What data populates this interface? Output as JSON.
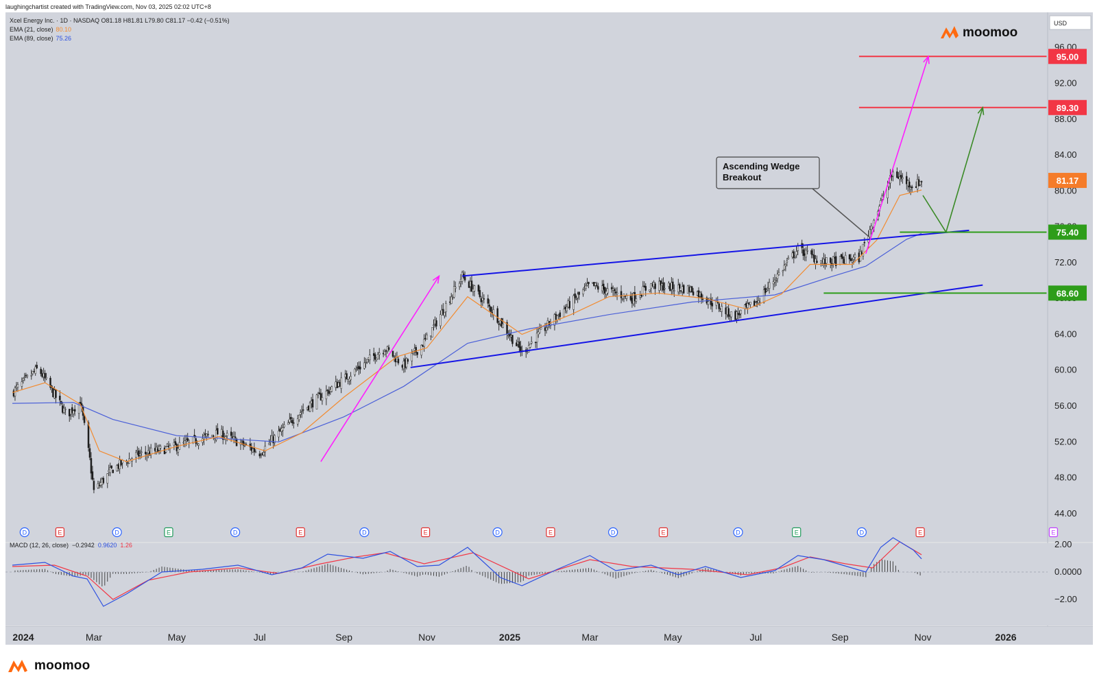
{
  "attribution": "laughingchartist created with TradingView.com, Nov 03, 2025 02:02 UTC+8",
  "legend": {
    "symbol_line": "Xcel Energy Inc. · 1D · NASDAQ  O81.18  H81.81  L79.80  C81.17  −0.42 (−0.51%)",
    "ema21_label": "EMA (21, close)",
    "ema21_value": "80.10",
    "ema89_label": "EMA (89, close)",
    "ema89_value": "75.26",
    "macd_label": "MACD (12, 26, close)",
    "macd_hist": "−0.2942",
    "macd_line": "0.9620",
    "macd_signal": "1.26"
  },
  "currency": "USD",
  "brand": "moomoo",
  "colors": {
    "background": "#d1d4dc",
    "ema21": "#f28b30",
    "ema89": "#4a5fd8",
    "wedge": "#1414e6",
    "projection": "#ff1eff",
    "target": "#f23645",
    "support": "#2e9d1a",
    "path": "#3a8a26",
    "macd": "#2d50e0",
    "signal": "#f23645"
  },
  "chart_data": {
    "type": "candlestick",
    "price_axis": {
      "ticks": [
        "96.00",
        "92.00",
        "88.00",
        "84.00",
        "80.00",
        "76.00",
        "72.00",
        "68.00",
        "64.00",
        "60.00",
        "56.00",
        "52.00",
        "48.00",
        "44.00"
      ],
      "range": [
        43,
        99
      ]
    },
    "time_axis": {
      "labels": [
        "2024",
        "Mar",
        "May",
        "Jul",
        "Sep",
        "Nov",
        "2025",
        "Mar",
        "May",
        "Jul",
        "Sep",
        "Nov",
        "2026"
      ]
    },
    "key_points": [
      {
        "date": "2024-01-01",
        "close": 57.5
      },
      {
        "date": "2024-01-20",
        "close": 60.2
      },
      {
        "date": "2024-02-10",
        "close": 55.0
      },
      {
        "date": "2024-02-20",
        "close": 56.5
      },
      {
        "date": "2024-02-27",
        "close": 50.0
      },
      {
        "date": "2024-03-01",
        "close": 46.5
      },
      {
        "date": "2024-03-15",
        "close": 49.0
      },
      {
        "date": "2024-04-01",
        "close": 50.5
      },
      {
        "date": "2024-05-01",
        "close": 51.5
      },
      {
        "date": "2024-06-01",
        "close": 53.0
      },
      {
        "date": "2024-07-01",
        "close": 50.8
      },
      {
        "date": "2024-08-01",
        "close": 55.5
      },
      {
        "date": "2024-09-01",
        "close": 59.0
      },
      {
        "date": "2024-10-01",
        "close": 62.5
      },
      {
        "date": "2024-10-15",
        "close": 60.5
      },
      {
        "date": "2024-11-01",
        "close": 63.5
      },
      {
        "date": "2024-11-27",
        "close": 70.5
      },
      {
        "date": "2024-12-20",
        "close": 66.5
      },
      {
        "date": "2025-01-10",
        "close": 62.0
      },
      {
        "date": "2025-02-01",
        "close": 65.5
      },
      {
        "date": "2025-03-01",
        "close": 69.5
      },
      {
        "date": "2025-04-01",
        "close": 68.0
      },
      {
        "date": "2025-04-15",
        "close": 69.5
      },
      {
        "date": "2025-05-15",
        "close": 69.0
      },
      {
        "date": "2025-06-15",
        "close": 66.0
      },
      {
        "date": "2025-07-01",
        "close": 67.5
      },
      {
        "date": "2025-08-01",
        "close": 73.5
      },
      {
        "date": "2025-08-20",
        "close": 72.0
      },
      {
        "date": "2025-09-15",
        "close": 72.5
      },
      {
        "date": "2025-09-25",
        "close": 76.5
      },
      {
        "date": "2025-10-10",
        "close": 82.0
      },
      {
        "date": "2025-10-25",
        "close": 80.5
      },
      {
        "date": "2025-10-31",
        "close": 81.17
      }
    ],
    "ema21_points": [
      {
        "date": "2024-01-01",
        "value": 57.5
      },
      {
        "date": "2024-01-25",
        "value": 58.6
      },
      {
        "date": "2024-02-20",
        "value": 56.2
      },
      {
        "date": "2024-03-05",
        "value": 51.0
      },
      {
        "date": "2024-03-25",
        "value": 49.8
      },
      {
        "date": "2024-05-01",
        "value": 51.5
      },
      {
        "date": "2024-06-01",
        "value": 52.6
      },
      {
        "date": "2024-07-05",
        "value": 51.0
      },
      {
        "date": "2024-08-01",
        "value": 53.0
      },
      {
        "date": "2024-09-01",
        "value": 57.0
      },
      {
        "date": "2024-10-10",
        "value": 61.5
      },
      {
        "date": "2024-11-01",
        "value": 62.5
      },
      {
        "date": "2024-12-01",
        "value": 68.2
      },
      {
        "date": "2025-01-10",
        "value": 64.0
      },
      {
        "date": "2025-02-15",
        "value": 66.2
      },
      {
        "date": "2025-03-15",
        "value": 68.2
      },
      {
        "date": "2025-04-20",
        "value": 68.6
      },
      {
        "date": "2025-05-25",
        "value": 68.0
      },
      {
        "date": "2025-06-25",
        "value": 66.8
      },
      {
        "date": "2025-07-20",
        "value": 68.5
      },
      {
        "date": "2025-08-10",
        "value": 71.8
      },
      {
        "date": "2025-09-10",
        "value": 71.8
      },
      {
        "date": "2025-09-28",
        "value": 74.5
      },
      {
        "date": "2025-10-15",
        "value": 79.5
      },
      {
        "date": "2025-10-31",
        "value": 80.1
      }
    ],
    "ema89_points": [
      {
        "date": "2024-01-01",
        "value": 56.3
      },
      {
        "date": "2024-02-15",
        "value": 56.4
      },
      {
        "date": "2024-03-15",
        "value": 54.5
      },
      {
        "date": "2024-05-01",
        "value": 52.7
      },
      {
        "date": "2024-07-15",
        "value": 52.0
      },
      {
        "date": "2024-09-01",
        "value": 54.8
      },
      {
        "date": "2024-10-15",
        "value": 58.2
      },
      {
        "date": "2024-12-01",
        "value": 63.0
      },
      {
        "date": "2025-01-15",
        "value": 64.6
      },
      {
        "date": "2025-03-15",
        "value": 66.2
      },
      {
        "date": "2025-05-15",
        "value": 67.6
      },
      {
        "date": "2025-07-15",
        "value": 68.4
      },
      {
        "date": "2025-08-25",
        "value": 70.4
      },
      {
        "date": "2025-09-20",
        "value": 71.6
      },
      {
        "date": "2025-10-20",
        "value": 74.6
      },
      {
        "date": "2025-10-31",
        "value": 75.26
      }
    ],
    "wedge_lines": [
      {
        "name": "upper",
        "from": {
          "date": "2024-11-27",
          "price": 70.5
        },
        "to": {
          "date": "2025-12-05",
          "price": 75.6
        }
      },
      {
        "name": "lower",
        "from": {
          "date": "2024-10-20",
          "price": 60.3
        },
        "to": {
          "date": "2025-12-15",
          "price": 69.5
        }
      }
    ],
    "projection_arrows": [
      {
        "from": {
          "date": "2024-08-15",
          "price": 49.8
        },
        "to": {
          "date": "2024-11-10",
          "price": 70.5
        }
      },
      {
        "from": {
          "date": "2025-09-20",
          "price": 73.0
        },
        "to": {
          "date": "2025-11-05",
          "price": 95.0
        }
      }
    ],
    "forecast_path": [
      {
        "date": "2025-11-01",
        "price": 79.5
      },
      {
        "date": "2025-11-18",
        "price": 75.4
      },
      {
        "date": "2025-12-15",
        "price": 89.3
      }
    ],
    "levels": [
      {
        "price": 95.0,
        "label": "95.00",
        "kind": "target",
        "start": "2025-09-15",
        "end": "2026-01-31"
      },
      {
        "price": 89.3,
        "label": "89.30",
        "kind": "target",
        "start": "2025-09-15",
        "end": "2026-01-31"
      },
      {
        "price": 81.17,
        "label": "81.17",
        "kind": "last"
      },
      {
        "price": 75.4,
        "label": "75.40",
        "kind": "support",
        "start": "2025-10-15",
        "end": "2026-01-31"
      },
      {
        "price": 68.6,
        "label": "68.60",
        "kind": "support",
        "start": "2025-08-20",
        "end": "2026-01-31"
      }
    ],
    "annotation": {
      "text_line1": "Ascending Wedge",
      "text_line2": "Breakout",
      "points_to": {
        "date": "2025-09-23",
        "price": 74.8
      }
    },
    "event_markers": [
      {
        "date": "2024-01-10",
        "type": "D"
      },
      {
        "date": "2024-02-05",
        "type": "E"
      },
      {
        "date": "2024-03-18",
        "type": "D"
      },
      {
        "date": "2024-04-25",
        "type": "E"
      },
      {
        "date": "2024-06-13",
        "type": "D"
      },
      {
        "date": "2024-07-31",
        "type": "E"
      },
      {
        "date": "2024-09-16",
        "type": "D"
      },
      {
        "date": "2024-10-31",
        "type": "E"
      },
      {
        "date": "2024-12-23",
        "type": "D"
      },
      {
        "date": "2025-01-31",
        "type": "E"
      },
      {
        "date": "2025-03-18",
        "type": "D"
      },
      {
        "date": "2025-04-24",
        "type": "E"
      },
      {
        "date": "2025-06-18",
        "type": "D"
      },
      {
        "date": "2025-07-31",
        "type": "E"
      },
      {
        "date": "2025-09-17",
        "type": "D"
      },
      {
        "date": "2025-10-30",
        "type": "E"
      },
      {
        "date": "2026-02-05",
        "type": "E"
      }
    ],
    "macd": {
      "ticks": [
        "2.00",
        "0.0000",
        "−2.00"
      ],
      "range": [
        -3.0,
        3.0
      ],
      "macd_points": [
        {
          "date": "2024-01-01",
          "value": 0.5
        },
        {
          "date": "2024-01-25",
          "value": 0.7
        },
        {
          "date": "2024-02-15",
          "value": -0.3
        },
        {
          "date": "2024-02-25",
          "value": -0.5
        },
        {
          "date": "2024-03-08",
          "value": -2.5
        },
        {
          "date": "2024-03-25",
          "value": -1.6
        },
        {
          "date": "2024-04-20",
          "value": 0.0
        },
        {
          "date": "2024-05-20",
          "value": 0.2
        },
        {
          "date": "2024-06-15",
          "value": 0.5
        },
        {
          "date": "2024-07-10",
          "value": -0.2
        },
        {
          "date": "2024-08-01",
          "value": 0.3
        },
        {
          "date": "2024-08-20",
          "value": 1.3
        },
        {
          "date": "2024-09-15",
          "value": 1.0
        },
        {
          "date": "2024-10-05",
          "value": 1.5
        },
        {
          "date": "2024-10-25",
          "value": 0.4
        },
        {
          "date": "2024-11-10",
          "value": 0.5
        },
        {
          "date": "2024-12-01",
          "value": 1.8
        },
        {
          "date": "2024-12-25",
          "value": -0.4
        },
        {
          "date": "2025-01-10",
          "value": -1.0
        },
        {
          "date": "2025-02-05",
          "value": 0.2
        },
        {
          "date": "2025-03-01",
          "value": 1.2
        },
        {
          "date": "2025-03-20",
          "value": 0.1
        },
        {
          "date": "2025-04-15",
          "value": 0.5
        },
        {
          "date": "2025-05-05",
          "value": -0.2
        },
        {
          "date": "2025-05-25",
          "value": 0.4
        },
        {
          "date": "2025-06-20",
          "value": -0.4
        },
        {
          "date": "2025-07-15",
          "value": 0.1
        },
        {
          "date": "2025-08-01",
          "value": 1.2
        },
        {
          "date": "2025-08-20",
          "value": 0.9
        },
        {
          "date": "2025-09-20",
          "value": 0.0
        },
        {
          "date": "2025-10-01",
          "value": 1.8
        },
        {
          "date": "2025-10-10",
          "value": 2.5
        },
        {
          "date": "2025-10-25",
          "value": 1.6
        },
        {
          "date": "2025-10-31",
          "value": 0.96
        }
      ],
      "signal_points": [
        {
          "date": "2024-01-01",
          "value": 0.4
        },
        {
          "date": "2024-02-01",
          "value": 0.5
        },
        {
          "date": "2024-02-25",
          "value": -0.3
        },
        {
          "date": "2024-03-15",
          "value": -2.0
        },
        {
          "date": "2024-04-10",
          "value": -0.6
        },
        {
          "date": "2024-05-10",
          "value": 0.0
        },
        {
          "date": "2024-06-15",
          "value": 0.3
        },
        {
          "date": "2024-07-15",
          "value": -0.1
        },
        {
          "date": "2024-08-15",
          "value": 0.6
        },
        {
          "date": "2024-09-10",
          "value": 1.1
        },
        {
          "date": "2024-10-01",
          "value": 1.4
        },
        {
          "date": "2024-10-30",
          "value": 0.6
        },
        {
          "date": "2024-12-05",
          "value": 1.4
        },
        {
          "date": "2025-01-15",
          "value": -0.5
        },
        {
          "date": "2025-03-01",
          "value": 0.9
        },
        {
          "date": "2025-04-01",
          "value": 0.4
        },
        {
          "date": "2025-05-15",
          "value": 0.2
        },
        {
          "date": "2025-06-25",
          "value": -0.2
        },
        {
          "date": "2025-07-20",
          "value": 0.3
        },
        {
          "date": "2025-08-10",
          "value": 1.1
        },
        {
          "date": "2025-09-05",
          "value": 0.6
        },
        {
          "date": "2025-09-25",
          "value": 0.3
        },
        {
          "date": "2025-10-15",
          "value": 2.2
        },
        {
          "date": "2025-10-31",
          "value": 1.26
        }
      ]
    }
  }
}
